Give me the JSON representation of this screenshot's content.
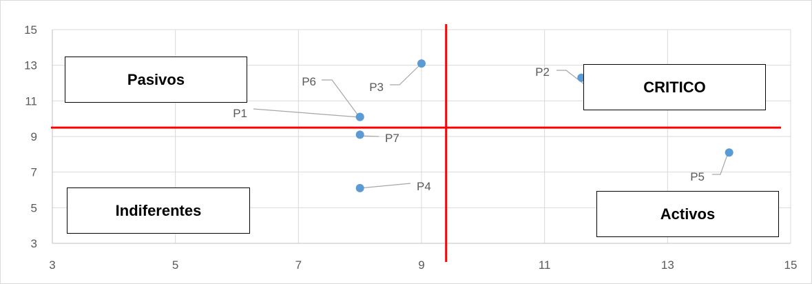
{
  "chart_data": {
    "type": "scatter",
    "title": "",
    "xlabel": "",
    "ylabel": "",
    "xlim": [
      3,
      15
    ],
    "ylim": [
      3,
      15
    ],
    "x_ticks": [
      3,
      5,
      7,
      9,
      11,
      13,
      15
    ],
    "y_ticks": [
      3,
      5,
      7,
      9,
      11,
      13,
      15
    ],
    "grid": true,
    "marker_color": "#5b9bd5",
    "divider_color": "#ff0000",
    "dividers": {
      "x": 9.4,
      "y": 9.5
    },
    "points": [
      {
        "label": "P1",
        "x": 8,
        "y": 10.1
      },
      {
        "label": "P2",
        "x": 11.6,
        "y": 12.3
      },
      {
        "label": "P3",
        "x": 9,
        "y": 13.1
      },
      {
        "label": "P4",
        "x": 8,
        "y": 6.1
      },
      {
        "label": "P5",
        "x": 14,
        "y": 8.1
      },
      {
        "label": "P6",
        "x": 8,
        "y": 10.1
      },
      {
        "label": "P7",
        "x": 8,
        "y": 9.1
      }
    ],
    "quadrants": {
      "top_left": "Pasivos",
      "top_right": "CRITICO",
      "bottom_left": "Indiferentes",
      "bottom_right": "Activos"
    }
  }
}
